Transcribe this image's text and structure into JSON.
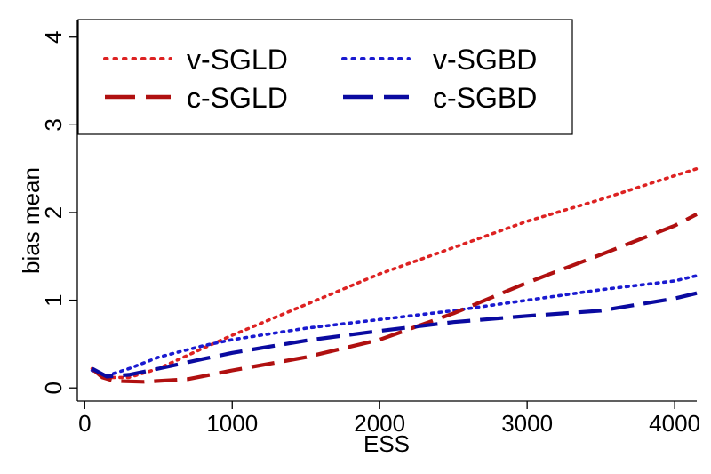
{
  "chart_data": {
    "type": "line",
    "title": "",
    "xlabel": "ESS",
    "ylabel": "bias mean",
    "xlim": [
      -50,
      4150
    ],
    "ylim": [
      -0.15,
      4.2
    ],
    "xticks": [
      0,
      1000,
      2000,
      3000,
      4000
    ],
    "yticks": [
      0,
      1,
      2,
      3,
      4
    ],
    "grid": false,
    "legend_position": "top-left",
    "series": [
      {
        "name": "v-SGLD",
        "color": "#dd2222",
        "style": "dotted",
        "x": [
          50,
          150,
          300,
          500,
          800,
          1000,
          1500,
          2000,
          2500,
          3000,
          3500,
          4000,
          4150
        ],
        "y": [
          0.22,
          0.12,
          0.12,
          0.22,
          0.45,
          0.6,
          0.95,
          1.3,
          1.6,
          1.9,
          2.15,
          2.42,
          2.5
        ]
      },
      {
        "name": "v-SGBD",
        "color": "#1a1ad0",
        "style": "dotted",
        "x": [
          50,
          150,
          300,
          500,
          800,
          1000,
          1500,
          2000,
          2500,
          3000,
          3500,
          4000,
          4150
        ],
        "y": [
          0.2,
          0.14,
          0.22,
          0.35,
          0.48,
          0.55,
          0.68,
          0.78,
          0.88,
          1.0,
          1.12,
          1.22,
          1.28
        ]
      },
      {
        "name": "c-SGLD",
        "color": "#b01010",
        "style": "dashed",
        "x": [
          50,
          120,
          200,
          400,
          700,
          1000,
          1500,
          2000,
          2500,
          3000,
          3500,
          4000,
          4150
        ],
        "y": [
          0.22,
          0.12,
          0.08,
          0.07,
          0.1,
          0.2,
          0.35,
          0.55,
          0.85,
          1.2,
          1.52,
          1.85,
          1.98
        ]
      },
      {
        "name": "c-SGBD",
        "color": "#0a0aa0",
        "style": "dashed",
        "x": [
          50,
          150,
          300,
          500,
          800,
          1000,
          1500,
          2000,
          2500,
          3000,
          3500,
          4000,
          4150
        ],
        "y": [
          0.22,
          0.13,
          0.15,
          0.22,
          0.33,
          0.4,
          0.54,
          0.65,
          0.75,
          0.82,
          0.88,
          1.02,
          1.08
        ]
      }
    ]
  }
}
